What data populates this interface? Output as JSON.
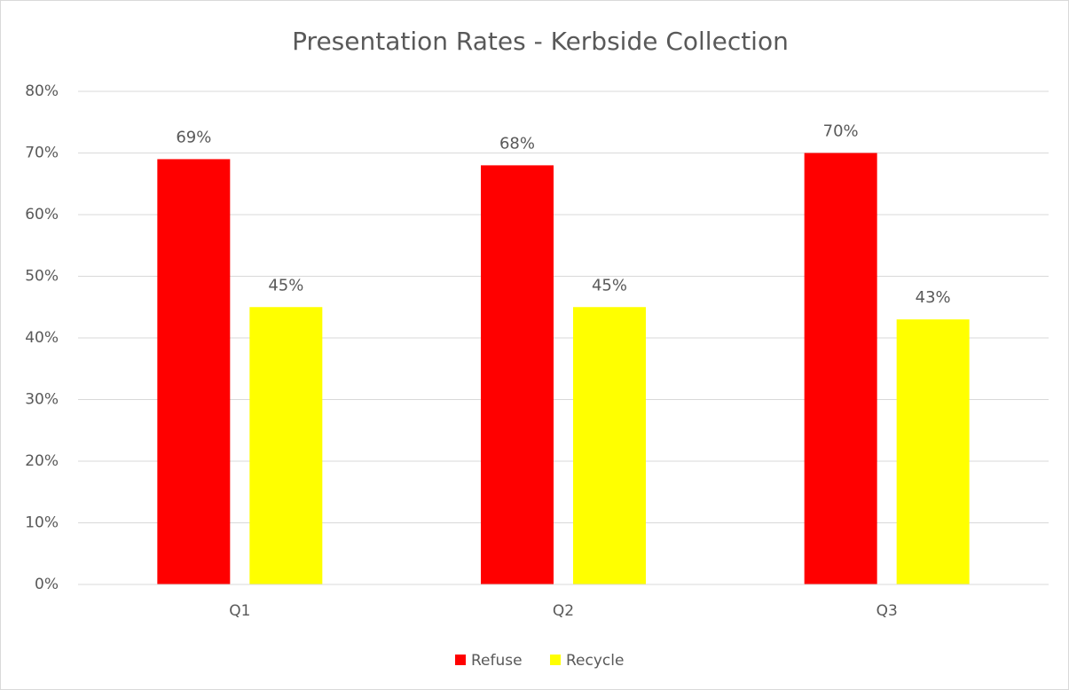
{
  "chart_data": {
    "type": "bar",
    "title": "Presentation Rates - Kerbside Collection",
    "categories": [
      "Q1",
      "Q2",
      "Q3"
    ],
    "series": [
      {
        "name": "Refuse",
        "color": "#ff0000",
        "values": [
          69,
          68,
          70
        ],
        "value_labels": [
          "69%",
          "68%",
          "70%"
        ]
      },
      {
        "name": "Recycle",
        "color": "#ffff00",
        "values": [
          45,
          45,
          43
        ],
        "value_labels": [
          "45%",
          "45%",
          "43%"
        ]
      }
    ],
    "ylim": [
      0,
      80
    ],
    "yticks": [
      {
        "value": 0,
        "label": "0%"
      },
      {
        "value": 10,
        "label": "10%"
      },
      {
        "value": 20,
        "label": "20%"
      },
      {
        "value": 30,
        "label": "30%"
      },
      {
        "value": 40,
        "label": "40%"
      },
      {
        "value": 50,
        "label": "50%"
      },
      {
        "value": 60,
        "label": "60%"
      },
      {
        "value": 70,
        "label": "70%"
      },
      {
        "value": 80,
        "label": "80%"
      }
    ],
    "grid": true,
    "legend": "bottom"
  }
}
